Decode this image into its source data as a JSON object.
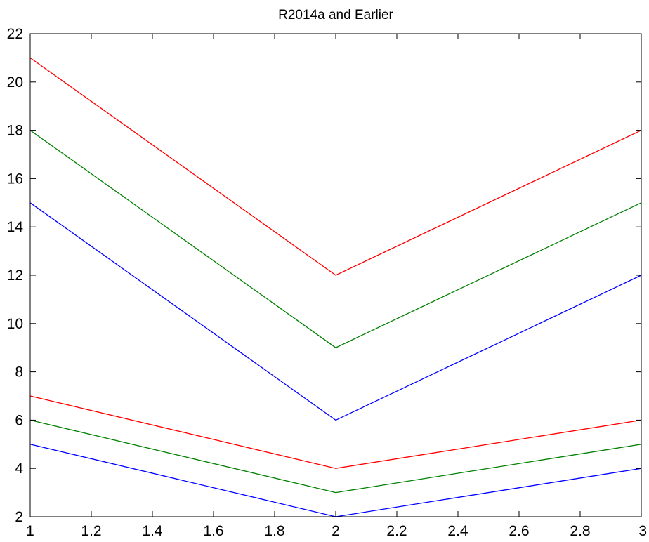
{
  "chart_data": {
    "type": "line",
    "title": "R2014a and Earlier",
    "xlabel": "",
    "ylabel": "",
    "xlim": [
      1,
      3
    ],
    "ylim": [
      2,
      22
    ],
    "grid": false,
    "x": [
      1,
      2,
      3
    ],
    "xticks": [
      "1",
      "1.2",
      "1.4",
      "1.6",
      "1.8",
      "2",
      "2.2",
      "2.4",
      "2.6",
      "2.8",
      "3"
    ],
    "yticks": [
      "2",
      "4",
      "6",
      "8",
      "10",
      "12",
      "14",
      "16",
      "18",
      "20",
      "22"
    ],
    "series": [
      {
        "color": "#0000ff",
        "values": [
          5,
          2,
          4
        ]
      },
      {
        "color": "#008000",
        "values": [
          6,
          3,
          5
        ]
      },
      {
        "color": "#ff0000",
        "values": [
          7,
          4,
          6
        ]
      },
      {
        "color": "#0000ff",
        "values": [
          15,
          6,
          12
        ]
      },
      {
        "color": "#008000",
        "values": [
          18,
          9,
          15
        ]
      },
      {
        "color": "#ff0000",
        "values": [
          21,
          12,
          18
        ]
      }
    ]
  }
}
